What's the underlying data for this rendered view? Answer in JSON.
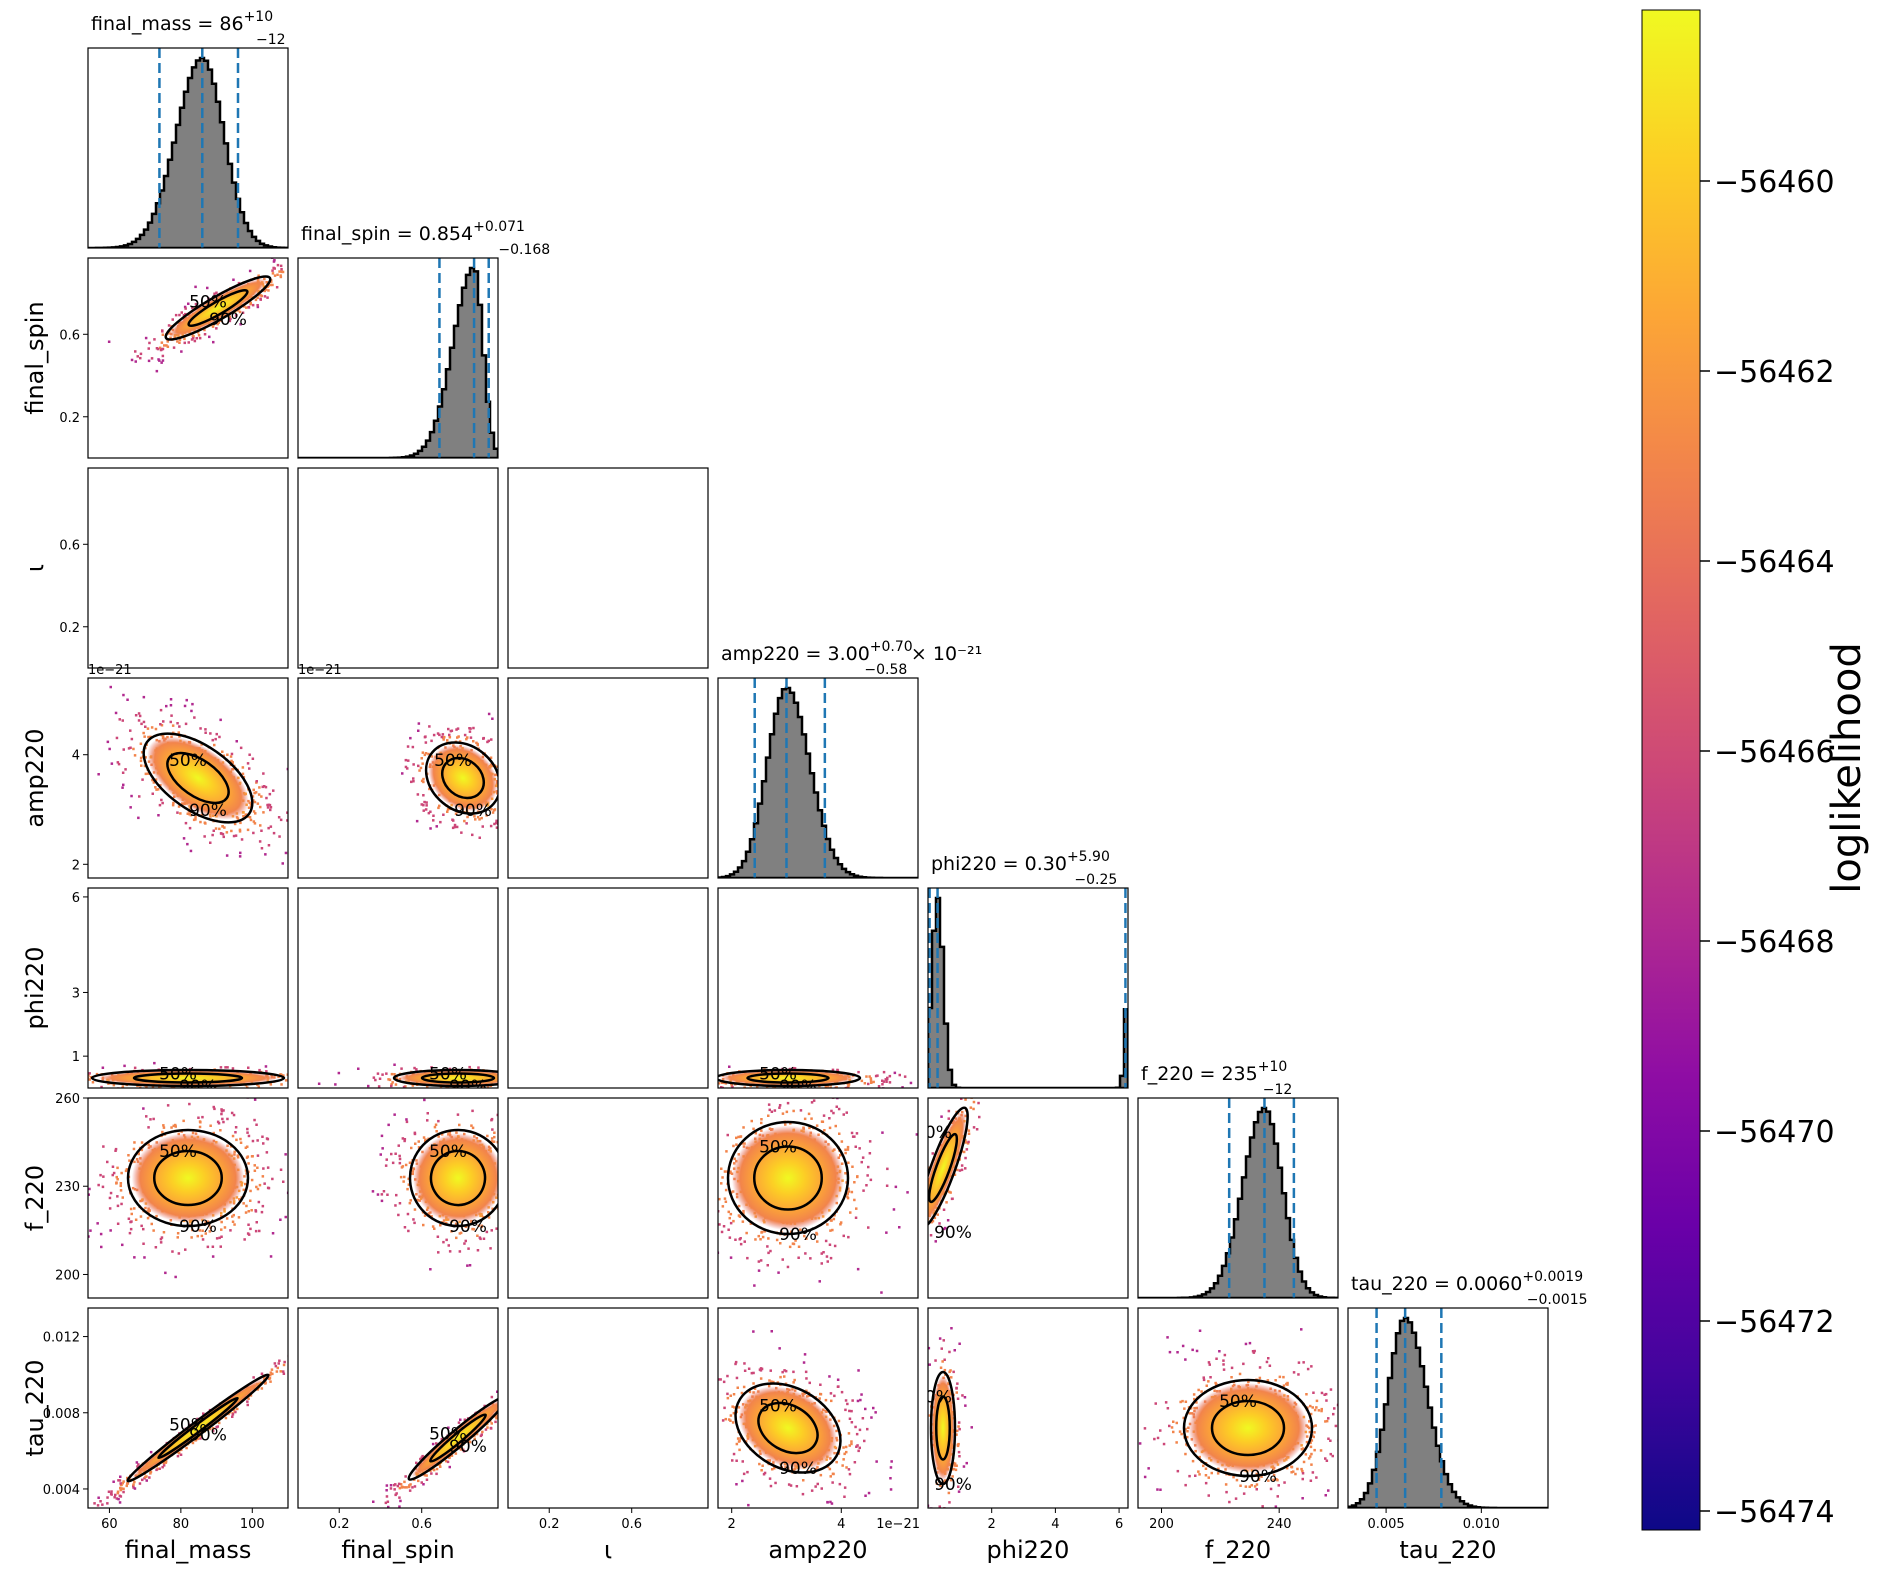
{
  "chart_data": {
    "type": "corner",
    "parameters": [
      "final_mass",
      "final_spin",
      "ι",
      "amp220",
      "phi220",
      "f_220",
      "tau_220"
    ],
    "axis_labels": [
      "final_mass",
      "final_spin",
      "ι",
      "amp220",
      "phi220",
      "f_220",
      "tau_220"
    ],
    "ranges": [
      [
        54,
        110
      ],
      [
        0.0,
        0.97
      ],
      [
        0.0,
        0.97
      ],
      [
        1.75e-21,
        5.4e-21
      ],
      [
        0.0,
        6.28
      ],
      [
        192,
        260
      ],
      [
        0.003,
        0.0135
      ]
    ],
    "ticks": {
      "final_mass": {
        "values": [
          60,
          80,
          100
        ],
        "labels": [
          "60",
          "80",
          "100"
        ]
      },
      "final_spin": {
        "values": [
          0.2,
          0.6
        ],
        "labels": [
          "0.2",
          "0.6"
        ]
      },
      "ι": {
        "values": [
          0.2,
          0.6
        ],
        "labels": [
          "0.2",
          "0.6"
        ]
      },
      "amp220": {
        "values": [
          2e-21,
          4e-21
        ],
        "labels": [
          "2",
          "4"
        ]
      },
      "phi220": {
        "values": [
          1,
          3,
          6
        ],
        "labels": [
          "1",
          "3",
          "6"
        ]
      },
      "phi220_x": {
        "values": [
          2,
          4,
          6
        ],
        "labels": [
          "2",
          "4",
          "6"
        ]
      },
      "f_220": {
        "values": [
          200,
          230,
          260
        ],
        "labels": [
          "200",
          "230",
          "260"
        ]
      },
      "f_220_x": {
        "values": [
          200,
          240
        ],
        "labels": [
          "200",
          "240"
        ]
      },
      "tau_220": {
        "values": [
          0.004,
          0.008,
          0.012
        ],
        "labels": [
          "0.004",
          "0.008",
          "0.012"
        ]
      },
      "tau_220_x": {
        "values": [
          0.005,
          0.01
        ],
        "labels": [
          "0.005",
          "0.010"
        ]
      }
    },
    "sci_offset": "1e−21",
    "diagonal_titles": [
      {
        "name": "final_mass",
        "median": "86",
        "plus": "+10",
        "minus": "−12",
        "suffix": ""
      },
      {
        "name": "final_spin",
        "median": "0.854",
        "plus": "+0.071",
        "minus": "−0.168",
        "suffix": ""
      },
      {
        "name": "",
        "median": "",
        "plus": "",
        "minus": "",
        "suffix": ""
      },
      {
        "name": "amp220",
        "median": "3.00",
        "plus": "+0.70",
        "minus": "−0.58",
        "suffix": " × 10⁻²¹"
      },
      {
        "name": "phi220",
        "median": "0.30",
        "plus": "+5.90",
        "minus": "−0.25",
        "suffix": ""
      },
      {
        "name": "f_220",
        "median": "235",
        "plus": "+10",
        "minus": "−12",
        "suffix": ""
      },
      {
        "name": "tau_220",
        "median": "0.0060",
        "plus": "+0.0019",
        "minus": "−0.0015",
        "suffix": ""
      }
    ],
    "quantile_lines": [
      [
        74,
        86,
        96
      ],
      [
        0.686,
        0.854,
        0.925
      ],
      null,
      [
        2.42e-21,
        3e-21,
        3.7e-21
      ],
      [
        0.05,
        0.3,
        6.2
      ],
      [
        223,
        235,
        245
      ],
      [
        0.0045,
        0.006,
        0.0079
      ]
    ],
    "contour_levels": [
      "50%",
      "90%"
    ],
    "colorbar": {
      "label": "loglikelihood",
      "min": -56474.2,
      "max": -56458.2,
      "ticks": [
        -56460,
        -56462,
        -56464,
        -56466,
        -56468,
        -56470,
        -56472,
        -56474
      ],
      "tick_labels": [
        "−56460",
        "−56462",
        "−56464",
        "−56466",
        "−56468",
        "−56470",
        "−56472",
        "−56474"
      ],
      "colormap": "plasma"
    },
    "colors": {
      "hist_fill": "#808080",
      "quantile_line": "#1f77b4",
      "contour": "#000000"
    }
  }
}
